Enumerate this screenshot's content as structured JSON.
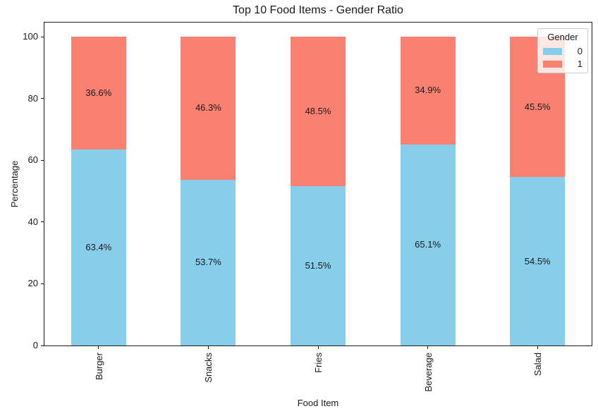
{
  "chart_data": {
    "type": "bar",
    "stacked": true,
    "title": "Top 10 Food Items - Gender Ratio",
    "xlabel": "Food Item",
    "ylabel": "Percentage",
    "categories": [
      "Burger",
      "Snacks",
      "Fries",
      "Beverage",
      "Salad"
    ],
    "series": [
      {
        "name": "0",
        "color": "#87CEEB",
        "values": [
          63.4,
          53.7,
          51.5,
          65.1,
          54.5
        ],
        "labels": [
          "63.4%",
          "53.7%",
          "51.5%",
          "65.1%",
          "54.5%"
        ]
      },
      {
        "name": "1",
        "color": "#FA8072",
        "values": [
          36.6,
          46.3,
          48.5,
          34.9,
          45.5
        ],
        "labels": [
          "36.6%",
          "46.3%",
          "48.5%",
          "34.9%",
          "45.5%"
        ]
      }
    ],
    "ylim": [
      0,
      100
    ],
    "yticks": [
      0,
      20,
      40,
      60,
      80,
      100
    ],
    "legend_title": "Gender",
    "legend_position": "upper right",
    "grid": false
  }
}
